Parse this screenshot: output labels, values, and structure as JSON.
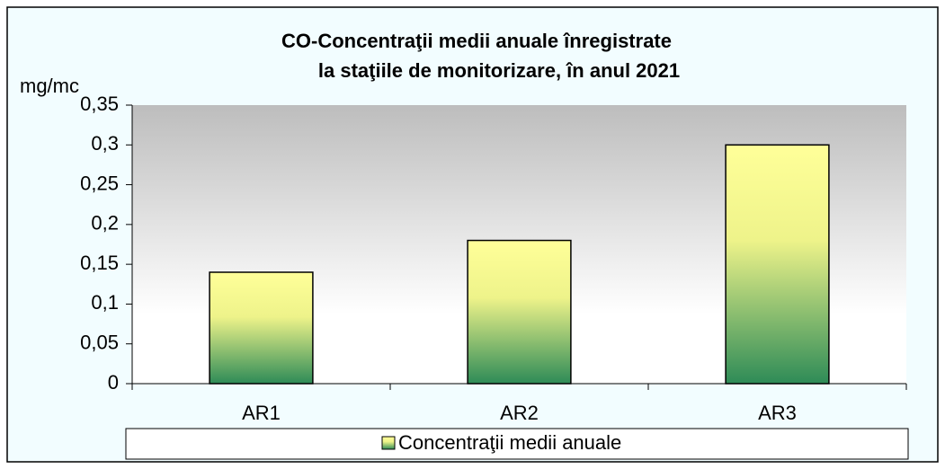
{
  "chart_data": {
    "type": "bar",
    "title": [
      "CO-Concentraţii medii anuale  înregistrate",
      "la staţiile de monitorizare, în anul 2021"
    ],
    "y_label": "mg/mc",
    "categories": [
      "AR1",
      "AR2",
      "AR3"
    ],
    "series": [
      {
        "name": "Concentraţii medii anuale",
        "color": "#2e8b57",
        "values": [
          0.14,
          0.18,
          0.3
        ]
      }
    ],
    "ylim": [
      0,
      0.35
    ],
    "yticks": [
      0,
      {
        "value": 0.05,
        "label": "0,05"
      },
      {
        "value": 0.1,
        "label": "0,1"
      },
      {
        "value": 0.15,
        "label": "0,15"
      },
      {
        "value": 0.2,
        "label": "0,2"
      },
      {
        "value": 0.25,
        "label": "0,25"
      },
      {
        "value": 0.3,
        "label": "0,3"
      },
      {
        "value": 0.35,
        "label": "0,35"
      }
    ],
    "legend": "bottom"
  }
}
